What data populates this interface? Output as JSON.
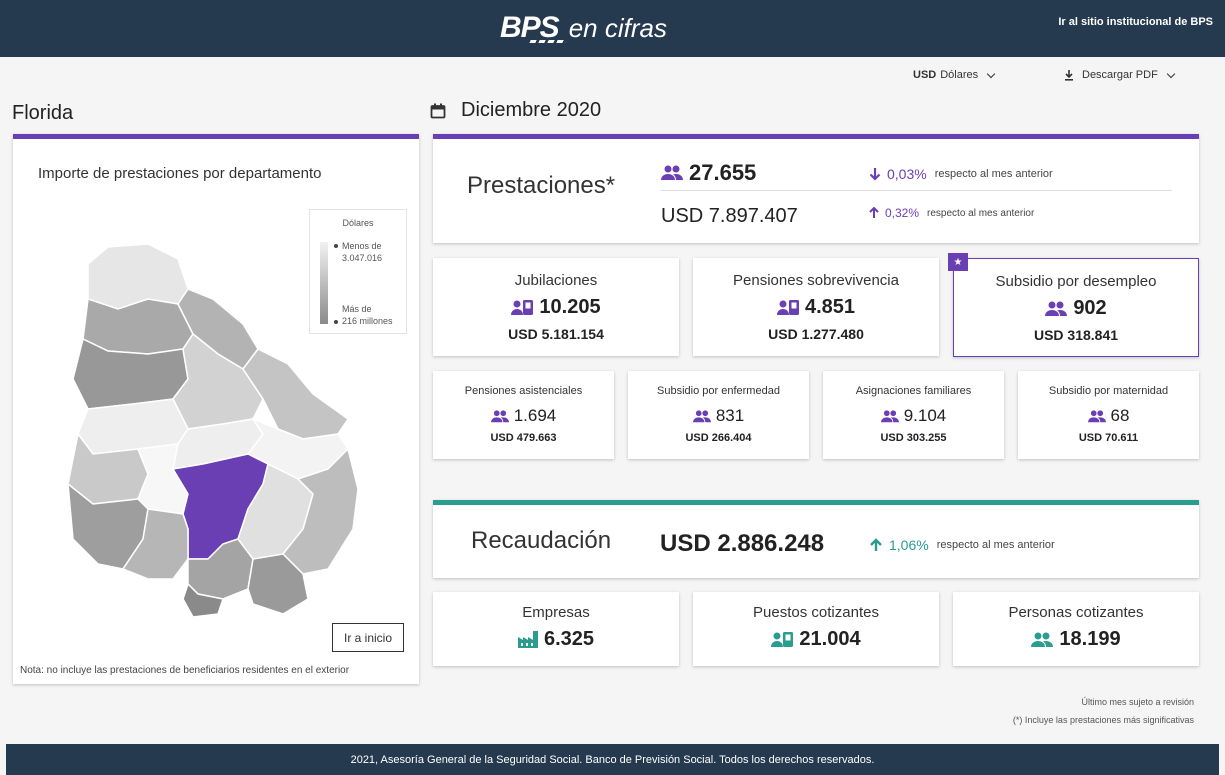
{
  "header": {
    "logo_bps": "BPS",
    "logo_text": "en cifras",
    "institutional_link": "Ir al sitio institucional de BPS"
  },
  "controls": {
    "currency_code": "USD",
    "currency_label": "Dólares",
    "download_label": "Descargar PDF"
  },
  "department": "Florida",
  "month": "Diciembre 2020",
  "map": {
    "title": "Importe de prestaciones por departamento",
    "legend_title": "Dólares",
    "legend_min_label": "Menos de",
    "legend_min_value": "3.047.016",
    "legend_max_label": "Más de",
    "legend_max_value": "216 millones",
    "home_button": "Ir a inicio",
    "note": "Nota: no incluye las prestaciones de beneficiarios residentes en el exterior",
    "highlight_color": "#6a3fb3"
  },
  "prestaciones": {
    "title": "Prestaciones*",
    "count": "27.655",
    "count_delta": "0,03%",
    "count_delta_direction": "down",
    "amount": "USD 7.897.407",
    "amount_delta": "0,32%",
    "amount_delta_direction": "up",
    "delta_text": "respecto al mes anterior"
  },
  "main_cards": [
    {
      "label": "Jubilaciones",
      "value": "10.205",
      "usd": "USD 5.181.154",
      "icon": "id-card-icon"
    },
    {
      "label": "Pensiones sobrevivencia",
      "value": "4.851",
      "usd": "USD 1.277.480",
      "icon": "id-card-icon"
    },
    {
      "label": "Subsidio por desempleo",
      "value": "902",
      "usd": "USD 318.841",
      "icon": "people-icon",
      "selected": true
    }
  ],
  "small_cards": [
    {
      "label": "Pensiones asistenciales",
      "value": "1.694",
      "usd": "USD 479.663"
    },
    {
      "label": "Subsidio por enfermedad",
      "value": "831",
      "usd": "USD 266.404"
    },
    {
      "label": "Asignaciones familiares",
      "value": "9.104",
      "usd": "USD 303.255"
    },
    {
      "label": "Subsidio por maternidad",
      "value": "68",
      "usd": "USD 70.611"
    }
  ],
  "recaudacion": {
    "title": "Recaudación",
    "amount": "USD 2.886.248",
    "delta": "1,06%",
    "delta_direction": "up",
    "delta_text": "respecto al mes anterior"
  },
  "rec_cards": [
    {
      "label": "Empresas",
      "value": "6.325",
      "icon": "factory-icon"
    },
    {
      "label": "Puestos cotizantes",
      "value": "21.004",
      "icon": "id-card-icon"
    },
    {
      "label": "Personas cotizantes",
      "value": "18.199",
      "icon": "people-icon"
    }
  ],
  "notes": {
    "line1": "Último mes sujeto a revisión",
    "line2": "(*) Incluye las prestaciones más significativas"
  },
  "footer": "2021, Asesoría General de la Seguridad Social. Banco de Previsión Social. Todos los derechos reservados.",
  "colors": {
    "purple": "#6a3fb3",
    "teal": "#2a9d8f",
    "navy": "#263a4f"
  }
}
